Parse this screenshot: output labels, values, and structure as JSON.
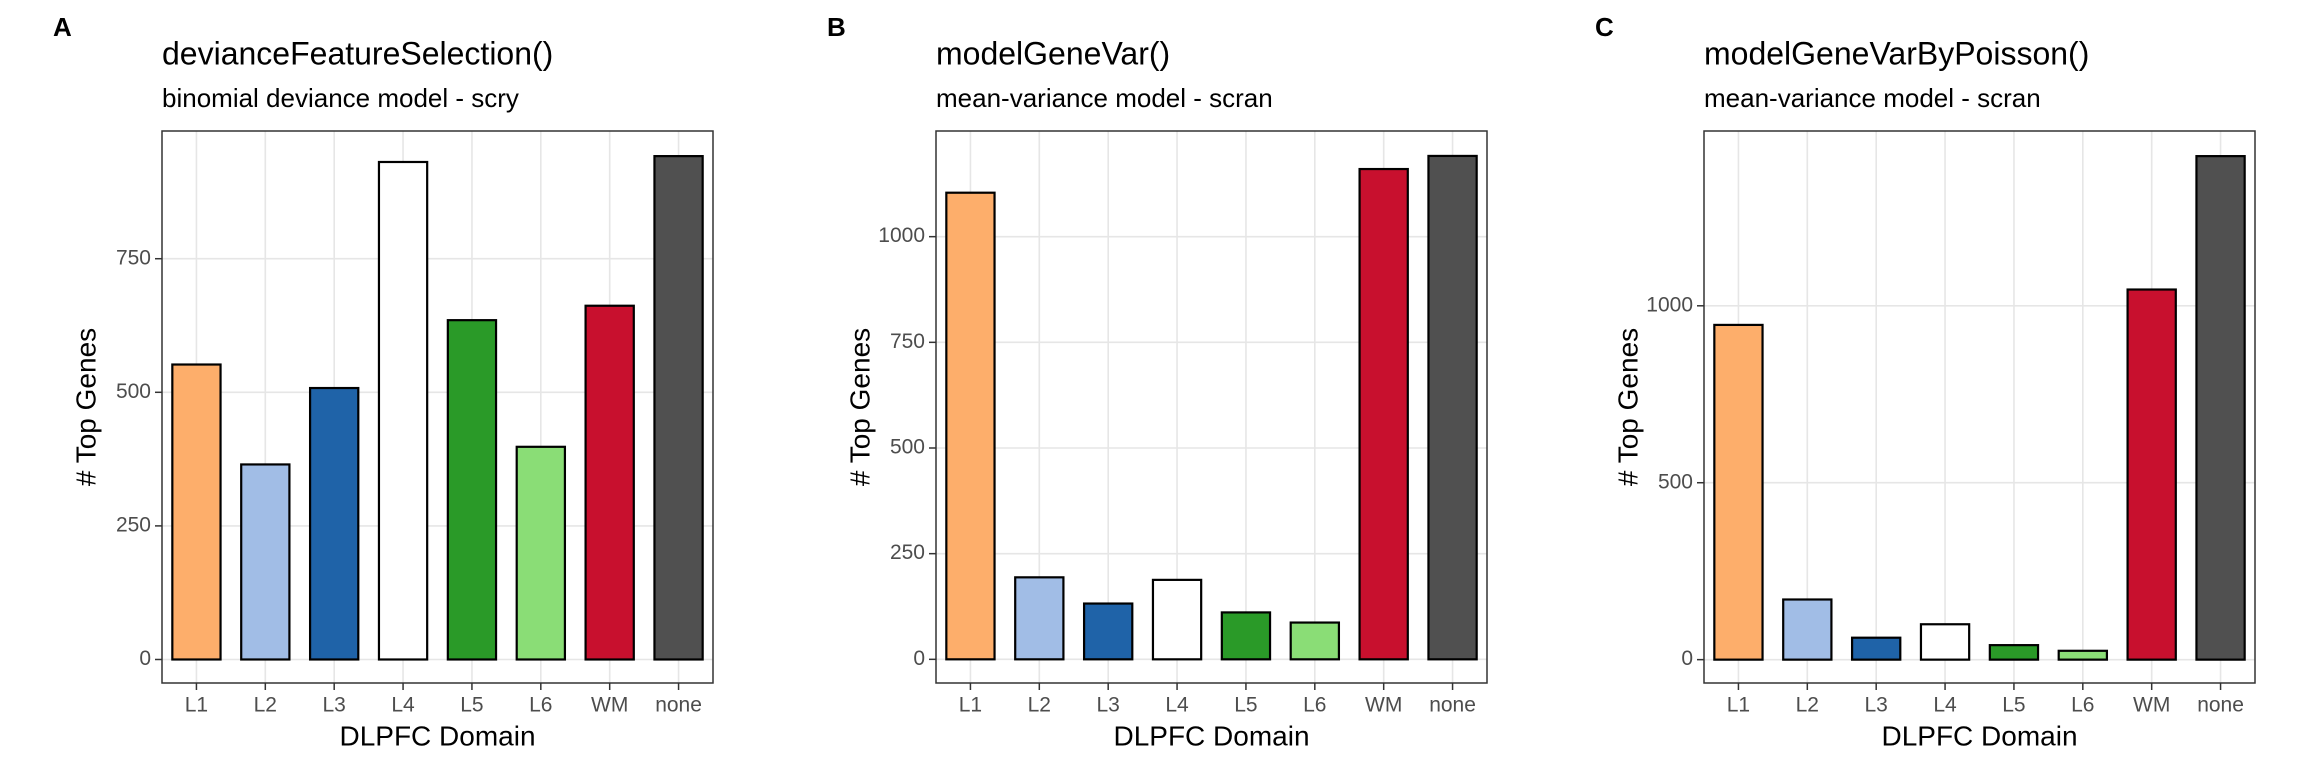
{
  "chart_data": [
    {
      "type": "bar",
      "panel": "A",
      "title": "devianceFeatureSelection()",
      "subtitle": "binomial deviance model - scry",
      "x_label": "DLPFC Domain",
      "y_label": "# Top Genes",
      "categories": [
        "L1",
        "L2",
        "L3",
        "L4",
        "L5",
        "L6",
        "WM",
        "none"
      ],
      "values": [
        552,
        365,
        508,
        931,
        635,
        398,
        662,
        942
      ],
      "colors": [
        "#fdae6b",
        "#a1bde6",
        "#1f63a8",
        "#ffffff",
        "#2a9a28",
        "#8add76",
        "#c8102e",
        "#505050"
      ],
      "ylim": [
        -44,
        989
      ],
      "yticks": [
        0,
        250,
        500,
        750
      ],
      "grid": true
    },
    {
      "type": "bar",
      "panel": "B",
      "title": "modelGeneVar()",
      "subtitle": "mean-variance model - scran",
      "x_label": "DLPFC Domain",
      "y_label": "# Top Genes",
      "categories": [
        "L1",
        "L2",
        "L3",
        "L4",
        "L5",
        "L6",
        "WM",
        "none"
      ],
      "values": [
        1104,
        194,
        132,
        188,
        111,
        87,
        1160,
        1191
      ],
      "colors": [
        "#fdae6b",
        "#a1bde6",
        "#1f63a8",
        "#ffffff",
        "#2a9a28",
        "#8add76",
        "#c8102e",
        "#505050"
      ],
      "ylim": [
        -56,
        1250
      ],
      "yticks": [
        0,
        250,
        500,
        750,
        1000
      ],
      "grid": true
    },
    {
      "type": "bar",
      "panel": "C",
      "title": "modelGeneVarByPoisson()",
      "subtitle": "mean-variance model - scran",
      "x_label": "DLPFC Domain",
      "y_label": "# Top Genes",
      "categories": [
        "L1",
        "L2",
        "L3",
        "L4",
        "L5",
        "L6",
        "WM",
        "none"
      ],
      "values": [
        946,
        170,
        62,
        100,
        41,
        25,
        1046,
        1423
      ],
      "colors": [
        "#fdae6b",
        "#a1bde6",
        "#1f63a8",
        "#ffffff",
        "#2a9a28",
        "#8add76",
        "#c8102e",
        "#505050"
      ],
      "ylim": [
        -66,
        1494
      ],
      "yticks": [
        0,
        500,
        1000
      ],
      "grid": true
    }
  ]
}
